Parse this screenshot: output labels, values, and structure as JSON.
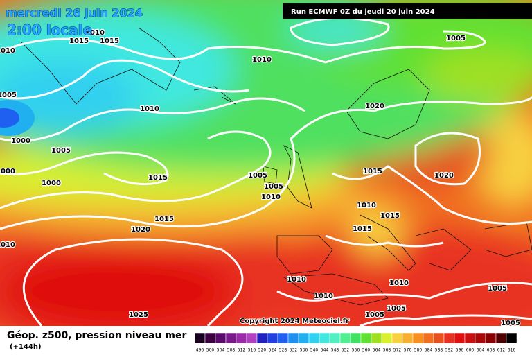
{
  "header": {
    "date": "mercredi 26 juin 2024",
    "time": "2:00 locale",
    "run": "Run ECMWF 0Z du jeudi 20 juin 2024",
    "copyright": "Copyright 2024 Meteociel.fr"
  },
  "legend": {
    "title": "Géop. z500, pression niveau mer",
    "lead": "(+144h)",
    "scale": [
      496,
      500,
      504,
      508,
      512,
      516,
      520,
      524,
      528,
      532,
      536,
      540,
      544,
      548,
      552,
      556,
      560,
      564,
      568,
      572,
      576,
      580,
      584,
      588,
      592,
      596,
      600,
      604,
      608,
      612,
      616
    ],
    "colors": [
      "#1a0020",
      "#3c0040",
      "#5a0a6a",
      "#7a1a8a",
      "#9a2aaa",
      "#b040c0",
      "#2020c0",
      "#2040e0",
      "#2060f0",
      "#2090f0",
      "#20b0f0",
      "#30d0f0",
      "#40e8e0",
      "#50f0c0",
      "#50f090",
      "#40e060",
      "#60e030",
      "#a0e020",
      "#d8f030",
      "#f8d040",
      "#f8b030",
      "#f89020",
      "#f07020",
      "#e85020",
      "#e83020",
      "#e01010",
      "#c81010",
      "#a80808",
      "#880000",
      "#500000",
      "#000000"
    ]
  },
  "isobar_labels": [
    1010,
    1010,
    1015,
    1015,
    1010,
    1005,
    1005,
    1010,
    1020,
    1000,
    1005,
    1000,
    1000,
    1015,
    1005,
    1005,
    1010,
    1015,
    1020,
    1010,
    1015,
    1015,
    1015,
    1020,
    1010,
    1010,
    1010,
    1010,
    1005,
    1005,
    1005,
    1025,
    1005
  ]
}
